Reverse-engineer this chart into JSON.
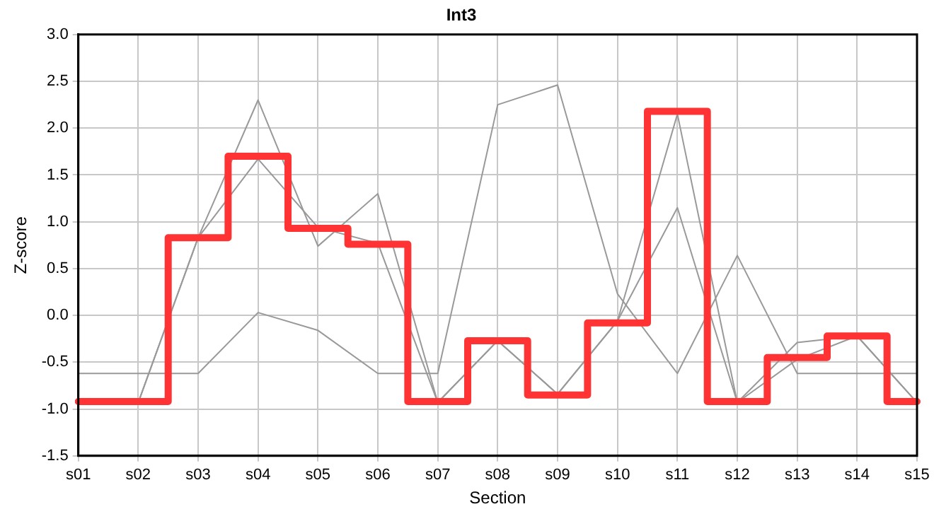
{
  "chart_data": {
    "type": "line",
    "title": "Int3",
    "xlabel": "Section",
    "ylabel": "Z-score",
    "categories": [
      "s01",
      "s02",
      "s03",
      "s04",
      "s05",
      "s06",
      "s07",
      "s08",
      "s09",
      "s10",
      "s11",
      "s12",
      "s13",
      "s14",
      "s15"
    ],
    "series": [
      {
        "type": "line",
        "color": "#999999",
        "values": [
          -0.93,
          -0.93,
          0.83,
          2.3,
          0.74,
          1.3,
          -0.93,
          -0.27,
          -0.84,
          -0.06,
          1.15,
          -0.93,
          -0.29,
          -0.22,
          -0.93
        ]
      },
      {
        "type": "line",
        "color": "#999999",
        "values": [
          -0.93,
          -0.93,
          0.83,
          1.67,
          0.94,
          0.77,
          -0.93,
          -0.27,
          -0.84,
          -0.06,
          2.15,
          -0.93,
          -0.47,
          -0.22,
          -0.93
        ]
      },
      {
        "type": "line",
        "color": "#999999",
        "values": [
          -0.62,
          -0.62,
          -0.62,
          0.03,
          -0.16,
          -0.62,
          -0.62,
          2.25,
          2.46,
          0.23,
          -0.62,
          0.64,
          -0.62,
          -0.62,
          -0.62
        ]
      },
      {
        "type": "step",
        "color": "#ff3333",
        "values": [
          -0.92,
          -0.92,
          0.83,
          1.7,
          0.93,
          0.76,
          -0.92,
          -0.27,
          -0.85,
          -0.08,
          2.18,
          -0.92,
          -0.45,
          -0.22,
          -0.92
        ]
      }
    ],
    "ylim": [
      -1.5,
      3.0
    ],
    "yticks": [
      {
        "value": -1.5,
        "label": "-1.5"
      },
      {
        "value": -1,
        "label": "-1.0"
      },
      {
        "value": -0.5,
        "label": "-0.5"
      },
      {
        "value": 0,
        "label": "0.0"
      },
      {
        "value": 0.5,
        "label": "0.5"
      },
      {
        "value": 1,
        "label": "1.0"
      },
      {
        "value": 1.5,
        "label": "1.5"
      },
      {
        "value": 2,
        "label": "2.0"
      },
      {
        "value": 2.5,
        "label": "2.5"
      },
      {
        "value": 3,
        "label": "3.0"
      }
    ],
    "grid": true,
    "legend": false,
    "marker": "none",
    "line_style": "solid"
  }
}
